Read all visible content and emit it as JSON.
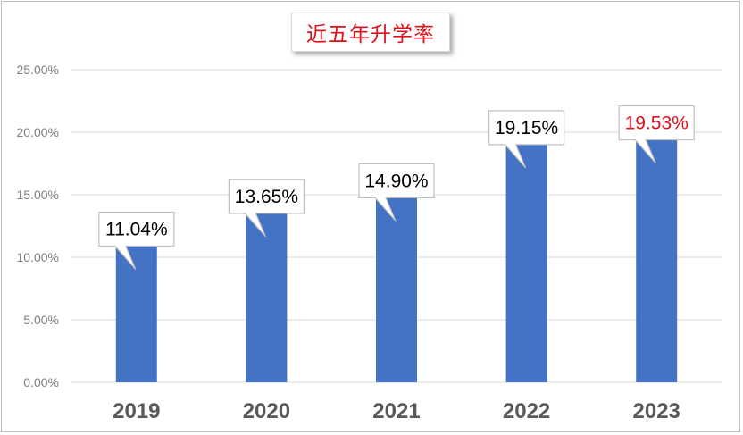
{
  "chart_data": {
    "type": "bar",
    "title": "近五年升学率",
    "categories": [
      "2019",
      "2020",
      "2021",
      "2022",
      "2023"
    ],
    "values": [
      11.04,
      13.65,
      14.9,
      19.15,
      19.53
    ],
    "data_labels": [
      "11.04%",
      "13.65%",
      "14.90%",
      "19.15%",
      "19.53%"
    ],
    "y_ticks": [
      "0.00%",
      "5.00%",
      "10.00%",
      "15.00%",
      "20.00%",
      "25.00%"
    ],
    "ylim": [
      0,
      25
    ],
    "grid": true,
    "xlabel": "",
    "ylabel": "",
    "colors": {
      "bar": "#4472c4",
      "title": "#e0101a",
      "label_default": "#000000",
      "label_highlight": "#e0101a",
      "grid": "#d9d9d9",
      "axis_text": "#7f7f7f",
      "category_text": "#595959"
    },
    "highlight_index": 4
  }
}
